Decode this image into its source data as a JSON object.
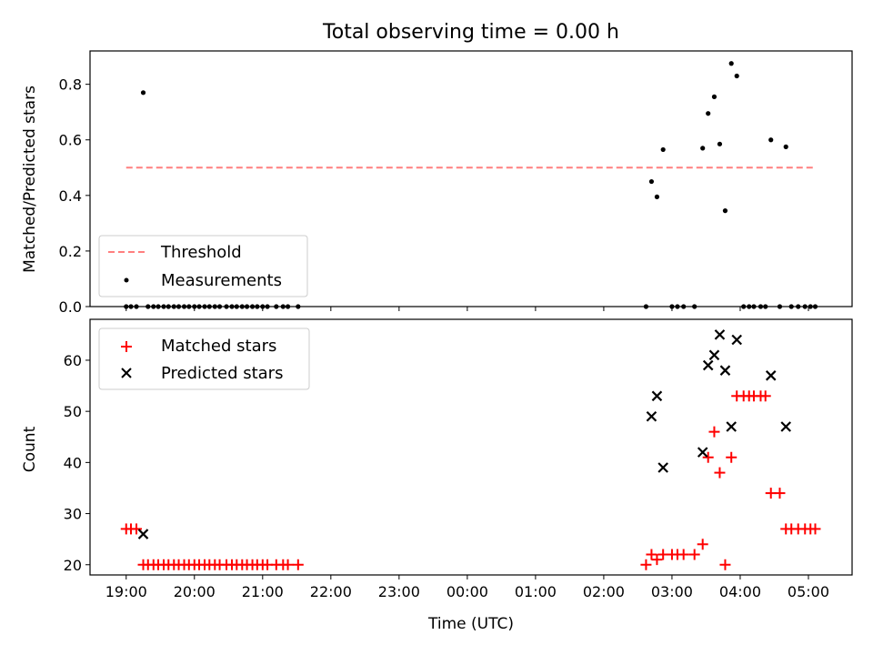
{
  "figure": {
    "title": "Total observing time = 0.00 h",
    "xlabel": "Time (UTC)"
  },
  "chart_data": [
    {
      "type": "scatter",
      "ylabel": "Matched/Predicted stars",
      "xlim": [
        18.47,
        29.64
      ],
      "ylim": [
        0.0,
        0.92
      ],
      "xticks": [
        19,
        20,
        21,
        22,
        23,
        24,
        25,
        26,
        27,
        28,
        29
      ],
      "yticks": [
        0.0,
        0.2,
        0.4,
        0.6,
        0.8
      ],
      "ytick_labels": [
        "0.0",
        "0.2",
        "0.4",
        "0.6",
        "0.8"
      ],
      "legend_position": "lower-left",
      "series": [
        {
          "name": "Threshold",
          "kind": "dashed-line",
          "color": "#ff7f7f",
          "points": [
            [
              19.0,
              0.5
            ],
            [
              29.07,
              0.5
            ]
          ]
        },
        {
          "name": "Measurements",
          "kind": "dot",
          "color": "#000000",
          "points": [
            [
              19.0,
              0.0
            ],
            [
              19.07,
              0.0
            ],
            [
              19.15,
              0.0
            ],
            [
              19.25,
              0.77
            ],
            [
              19.32,
              0.0
            ],
            [
              19.4,
              0.0
            ],
            [
              19.47,
              0.0
            ],
            [
              19.55,
              0.0
            ],
            [
              19.62,
              0.0
            ],
            [
              19.7,
              0.0
            ],
            [
              19.77,
              0.0
            ],
            [
              19.85,
              0.0
            ],
            [
              19.92,
              0.0
            ],
            [
              20.0,
              0.0
            ],
            [
              20.07,
              0.0
            ],
            [
              20.15,
              0.0
            ],
            [
              20.22,
              0.0
            ],
            [
              20.3,
              0.0
            ],
            [
              20.37,
              0.0
            ],
            [
              20.47,
              0.0
            ],
            [
              20.55,
              0.0
            ],
            [
              20.62,
              0.0
            ],
            [
              20.7,
              0.0
            ],
            [
              20.77,
              0.0
            ],
            [
              20.85,
              0.0
            ],
            [
              20.92,
              0.0
            ],
            [
              21.0,
              0.0
            ],
            [
              21.07,
              0.0
            ],
            [
              21.2,
              0.0
            ],
            [
              21.3,
              0.0
            ],
            [
              21.37,
              0.0
            ],
            [
              21.52,
              0.0
            ],
            [
              26.62,
              0.0
            ],
            [
              26.7,
              0.45
            ],
            [
              26.78,
              0.395
            ],
            [
              26.87,
              0.565
            ],
            [
              27.0,
              0.0
            ],
            [
              27.08,
              0.0
            ],
            [
              27.17,
              0.0
            ],
            [
              27.33,
              0.0
            ],
            [
              27.45,
              0.57
            ],
            [
              27.53,
              0.695
            ],
            [
              27.62,
              0.755
            ],
            [
              27.7,
              0.585
            ],
            [
              27.78,
              0.345
            ],
            [
              27.87,
              0.875
            ],
            [
              27.95,
              0.83
            ],
            [
              28.05,
              0.0
            ],
            [
              28.13,
              0.0
            ],
            [
              28.2,
              0.0
            ],
            [
              28.3,
              0.0
            ],
            [
              28.37,
              0.0
            ],
            [
              28.45,
              0.6
            ],
            [
              28.58,
              0.0
            ],
            [
              28.67,
              0.575
            ],
            [
              28.75,
              0.0
            ],
            [
              28.85,
              0.0
            ],
            [
              28.95,
              0.0
            ],
            [
              29.03,
              0.0
            ],
            [
              29.1,
              0.0
            ]
          ]
        }
      ]
    },
    {
      "type": "scatter",
      "ylabel": "Count",
      "xlim": [
        18.47,
        29.64
      ],
      "ylim": [
        18.0,
        68.0
      ],
      "xticks": [
        19,
        20,
        21,
        22,
        23,
        24,
        25,
        26,
        27,
        28,
        29
      ],
      "xtick_labels": [
        "19:00",
        "20:00",
        "21:00",
        "22:00",
        "23:00",
        "00:00",
        "01:00",
        "02:00",
        "03:00",
        "04:00",
        "05:00"
      ],
      "yticks": [
        20,
        30,
        40,
        50,
        60
      ],
      "ytick_labels": [
        "20",
        "30",
        "40",
        "50",
        "60"
      ],
      "legend_position": "top-left",
      "series": [
        {
          "name": "Matched stars",
          "kind": "plus",
          "color": "#ff0000",
          "points": [
            [
              19.0,
              27
            ],
            [
              19.07,
              27
            ],
            [
              19.15,
              27
            ],
            [
              19.25,
              20
            ],
            [
              19.32,
              20
            ],
            [
              19.4,
              20
            ],
            [
              19.47,
              20
            ],
            [
              19.55,
              20
            ],
            [
              19.62,
              20
            ],
            [
              19.7,
              20
            ],
            [
              19.77,
              20
            ],
            [
              19.85,
              20
            ],
            [
              19.92,
              20
            ],
            [
              20.0,
              20
            ],
            [
              20.07,
              20
            ],
            [
              20.15,
              20
            ],
            [
              20.22,
              20
            ],
            [
              20.3,
              20
            ],
            [
              20.37,
              20
            ],
            [
              20.47,
              20
            ],
            [
              20.55,
              20
            ],
            [
              20.62,
              20
            ],
            [
              20.7,
              20
            ],
            [
              20.77,
              20
            ],
            [
              20.85,
              20
            ],
            [
              20.92,
              20
            ],
            [
              21.0,
              20
            ],
            [
              21.07,
              20
            ],
            [
              21.2,
              20
            ],
            [
              21.3,
              20
            ],
            [
              21.37,
              20
            ],
            [
              21.52,
              20
            ],
            [
              26.62,
              20
            ],
            [
              26.7,
              22
            ],
            [
              26.78,
              21
            ],
            [
              26.87,
              22
            ],
            [
              27.0,
              22
            ],
            [
              27.08,
              22
            ],
            [
              27.17,
              22
            ],
            [
              27.33,
              22
            ],
            [
              27.45,
              24
            ],
            [
              27.53,
              41
            ],
            [
              27.62,
              46
            ],
            [
              27.7,
              38
            ],
            [
              27.78,
              20
            ],
            [
              27.87,
              41
            ],
            [
              27.95,
              53
            ],
            [
              28.05,
              53
            ],
            [
              28.13,
              53
            ],
            [
              28.2,
              53
            ],
            [
              28.3,
              53
            ],
            [
              28.37,
              53
            ],
            [
              28.45,
              34
            ],
            [
              28.58,
              34
            ],
            [
              28.67,
              27
            ],
            [
              28.75,
              27
            ],
            [
              28.85,
              27
            ],
            [
              28.95,
              27
            ],
            [
              29.03,
              27
            ],
            [
              29.1,
              27
            ]
          ]
        },
        {
          "name": "Predicted stars",
          "kind": "x",
          "color": "#000000",
          "points": [
            [
              19.25,
              26
            ],
            [
              26.7,
              49
            ],
            [
              26.78,
              53
            ],
            [
              26.87,
              39
            ],
            [
              27.45,
              42
            ],
            [
              27.53,
              59
            ],
            [
              27.62,
              61
            ],
            [
              27.7,
              65
            ],
            [
              27.78,
              58
            ],
            [
              27.87,
              47
            ],
            [
              27.95,
              64
            ],
            [
              28.45,
              57
            ],
            [
              28.67,
              47
            ]
          ]
        }
      ]
    }
  ]
}
